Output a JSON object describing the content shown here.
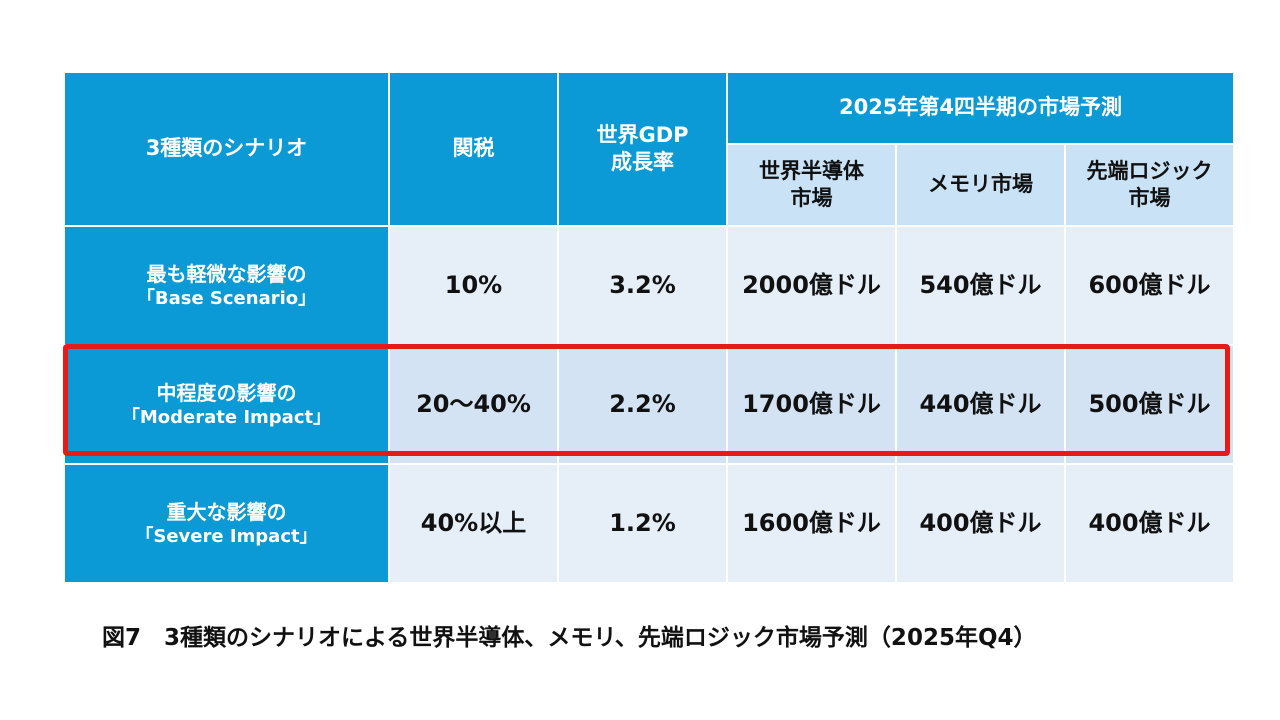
{
  "header": {
    "scenario": "3種類のシナリオ",
    "tariff": "関税",
    "gdp": "世界GDP\n成長率",
    "forecast": "2025年第4四半期の市場予測",
    "semi": "世界半導体\n市場",
    "memory": "メモリ市場",
    "logic": "先端ロジック\n市場"
  },
  "rows": [
    {
      "name": "最も軽微な影響の",
      "scenario": "「Base Scenario」",
      "tariff": "10%",
      "gdp": "3.2%",
      "semi": "2000億ドル",
      "memory": "540億ドル",
      "logic": "600億ドル"
    },
    {
      "name": "中程度の影響の",
      "scenario": "「Moderate Impact」",
      "tariff": "20～40%",
      "gdp": "2.2%",
      "semi": "1700億ドル",
      "memory": "440億ドル",
      "logic": "500億ドル"
    },
    {
      "name": "重大な影響の",
      "scenario": "「Severe Impact」",
      "tariff": "40%以上",
      "gdp": "1.2%",
      "semi": "1600億ドル",
      "memory": "400億ドル",
      "logic": "400億ドル"
    }
  ],
  "highlight_color": "#e41b17",
  "caption": "図7　3種類のシナリオによる世界半導体、メモリ、先端ロジック市場予測（2025年Q4）"
}
